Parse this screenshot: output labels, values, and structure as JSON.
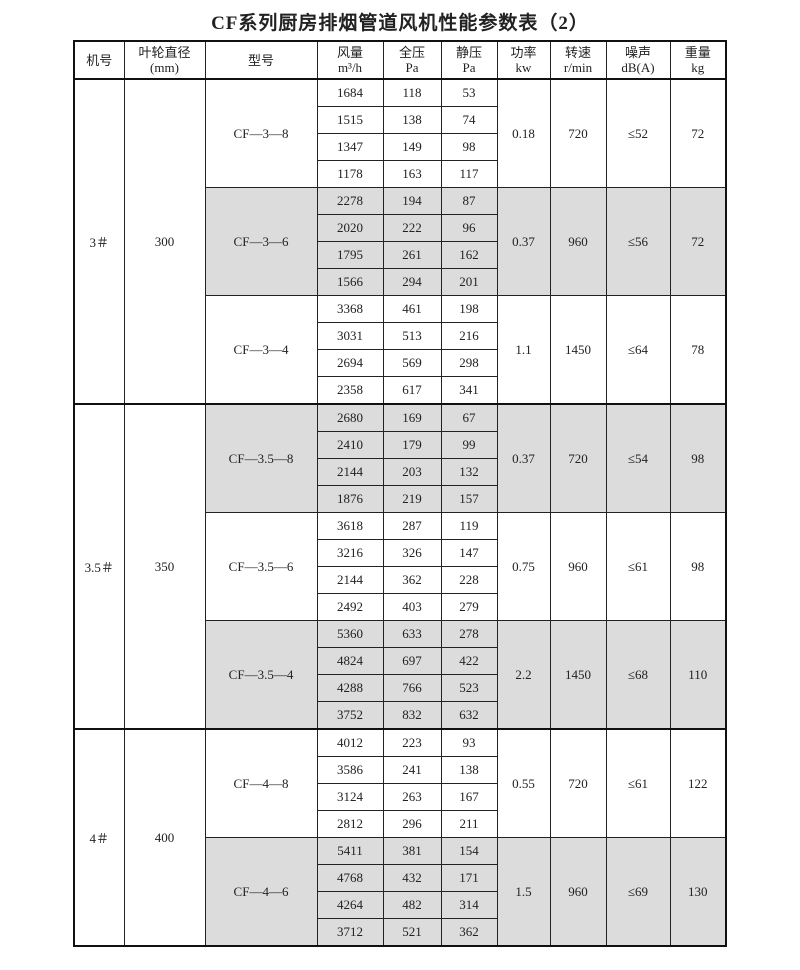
{
  "title": "CF系列厨房排烟管道风机性能参数表（2）",
  "headers": [
    {
      "l1": "机号",
      "l2": ""
    },
    {
      "l1": "叶轮直径",
      "l2": "(mm)"
    },
    {
      "l1": "型号",
      "l2": ""
    },
    {
      "l1": "风量",
      "l2": "m³/h"
    },
    {
      "l1": "全压",
      "l2": "Pa"
    },
    {
      "l1": "静压",
      "l2": "Pa"
    },
    {
      "l1": "功率",
      "l2": "kw"
    },
    {
      "l1": "转速",
      "l2": "r/min"
    },
    {
      "l1": "噪声",
      "l2": "dB(A)"
    },
    {
      "l1": "重量",
      "l2": "kg"
    }
  ],
  "shade_color": "#dcdcdc",
  "machines": [
    {
      "no": "3＃",
      "dia": "300",
      "models": [
        {
          "model": "CF—3—8",
          "power": "0.18",
          "speed": "720",
          "noise": "≤52",
          "weight": "72",
          "shaded": false,
          "rows": [
            [
              "1684",
              "118",
              "53"
            ],
            [
              "1515",
              "138",
              "74"
            ],
            [
              "1347",
              "149",
              "98"
            ],
            [
              "1178",
              "163",
              "117"
            ]
          ]
        },
        {
          "model": "CF—3—6",
          "power": "0.37",
          "speed": "960",
          "noise": "≤56",
          "weight": "72",
          "shaded": true,
          "rows": [
            [
              "2278",
              "194",
              "87"
            ],
            [
              "2020",
              "222",
              "96"
            ],
            [
              "1795",
              "261",
              "162"
            ],
            [
              "1566",
              "294",
              "201"
            ]
          ]
        },
        {
          "model": "CF—3—4",
          "power": "1.1",
          "speed": "1450",
          "noise": "≤64",
          "weight": "78",
          "shaded": false,
          "rows": [
            [
              "3368",
              "461",
              "198"
            ],
            [
              "3031",
              "513",
              "216"
            ],
            [
              "2694",
              "569",
              "298"
            ],
            [
              "2358",
              "617",
              "341"
            ]
          ]
        }
      ]
    },
    {
      "no": "3.5＃",
      "dia": "350",
      "models": [
        {
          "model": "CF—3.5—8",
          "power": "0.37",
          "speed": "720",
          "noise": "≤54",
          "weight": "98",
          "shaded": true,
          "rows": [
            [
              "2680",
              "169",
              "67"
            ],
            [
              "2410",
              "179",
              "99"
            ],
            [
              "2144",
              "203",
              "132"
            ],
            [
              "1876",
              "219",
              "157"
            ]
          ]
        },
        {
          "model": "CF—3.5—6",
          "power": "0.75",
          "speed": "960",
          "noise": "≤61",
          "weight": "98",
          "shaded": false,
          "rows": [
            [
              "3618",
              "287",
              "119"
            ],
            [
              "3216",
              "326",
              "147"
            ],
            [
              "2144",
              "362",
              "228"
            ],
            [
              "2492",
              "403",
              "279"
            ]
          ]
        },
        {
          "model": "CF—3.5—4",
          "power": "2.2",
          "speed": "1450",
          "noise": "≤68",
          "weight": "110",
          "shaded": true,
          "rows": [
            [
              "5360",
              "633",
              "278"
            ],
            [
              "4824",
              "697",
              "422"
            ],
            [
              "4288",
              "766",
              "523"
            ],
            [
              "3752",
              "832",
              "632"
            ]
          ]
        }
      ]
    },
    {
      "no": "4＃",
      "dia": "400",
      "models": [
        {
          "model": "CF—4—8",
          "power": "0.55",
          "speed": "720",
          "noise": "≤61",
          "weight": "122",
          "shaded": false,
          "rows": [
            [
              "4012",
              "223",
              "93"
            ],
            [
              "3586",
              "241",
              "138"
            ],
            [
              "3124",
              "263",
              "167"
            ],
            [
              "2812",
              "296",
              "211"
            ]
          ]
        },
        {
          "model": "CF—4—6",
          "power": "1.5",
          "speed": "960",
          "noise": "≤69",
          "weight": "130",
          "shaded": true,
          "rows": [
            [
              "5411",
              "381",
              "154"
            ],
            [
              "4768",
              "432",
              "171"
            ],
            [
              "4264",
              "482",
              "314"
            ],
            [
              "3712",
              "521",
              "362"
            ]
          ]
        }
      ]
    }
  ]
}
